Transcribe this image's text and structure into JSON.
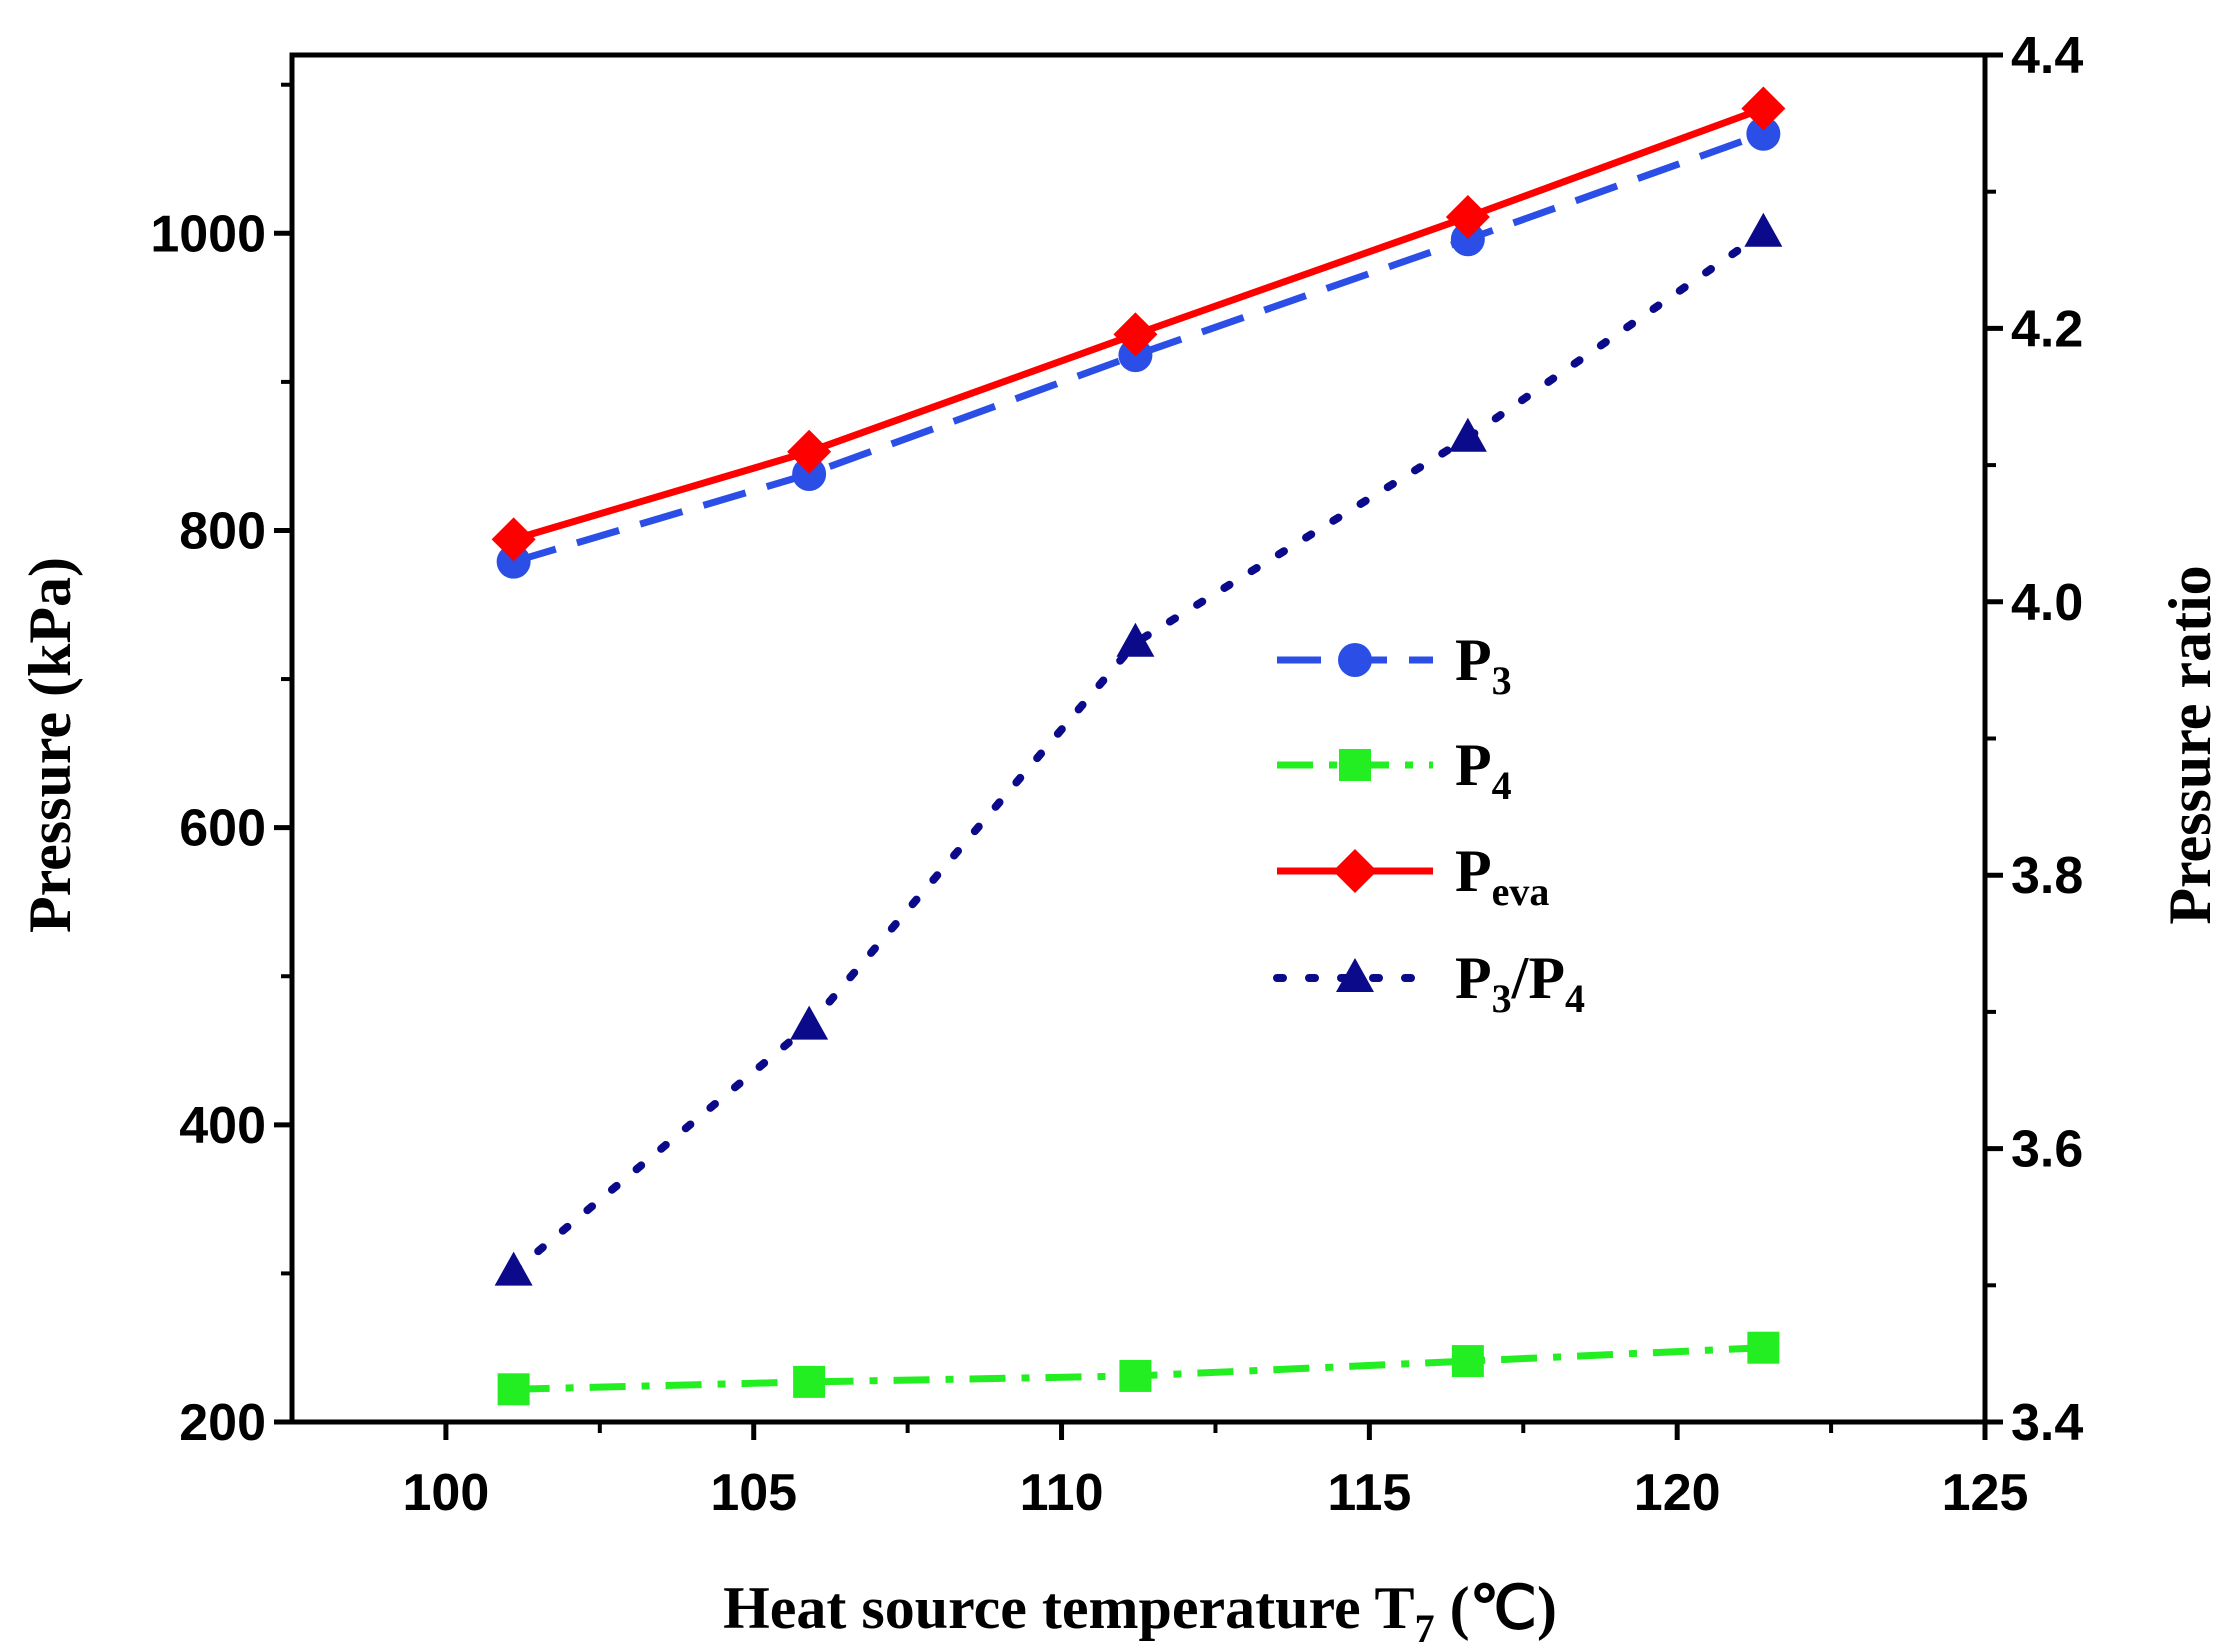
{
  "chart_data": {
    "type": "line",
    "xlabel": "Heat source temperature T",
    "xlabel_sub": "7",
    "xlabel_unit": " (℃)",
    "ylabel": "Pressure (kPa)",
    "y2label": "Pressure ratio",
    "xlim": [
      97.5,
      125
    ],
    "ylim": [
      200,
      1120
    ],
    "y2lim": [
      3.4,
      4.4
    ],
    "x_ticks": [
      "100",
      "105",
      "110",
      "115",
      "120",
      "125"
    ],
    "y_ticks": [
      "200",
      "400",
      "600",
      "800",
      "1000"
    ],
    "y2_ticks": [
      "3.4",
      "3.6",
      "3.8",
      "4.0",
      "4.2",
      "4.4"
    ],
    "x": [
      101.1,
      105.9,
      111.2,
      116.6,
      121.4
    ],
    "series": [
      {
        "name": "P",
        "sub": "3",
        "axis": "left",
        "marker": "circle",
        "line": "dash",
        "color": "#2b4fe6",
        "values": [
          779,
          838,
          918,
          996,
          1067
        ]
      },
      {
        "name": "P",
        "sub": "4",
        "axis": "left",
        "marker": "square",
        "line": "dashdot",
        "color": "#22ee22",
        "values": [
          222,
          227,
          231,
          241,
          250
        ]
      },
      {
        "name": "P",
        "sub": "eva",
        "axis": "left",
        "marker": "diamond",
        "line": "solid",
        "color": "#ff0000",
        "values": [
          794,
          853,
          932,
          1011,
          1084
        ]
      },
      {
        "name": "P",
        "sub": "3",
        "name2": "/P",
        "sub2": "4",
        "axis": "right",
        "marker": "triangle",
        "line": "dot",
        "color": "#0a0a8a",
        "values": [
          3.51,
          3.69,
          3.97,
          4.12,
          4.27
        ]
      }
    ],
    "legend_position": "center-right",
    "grid": false
  }
}
